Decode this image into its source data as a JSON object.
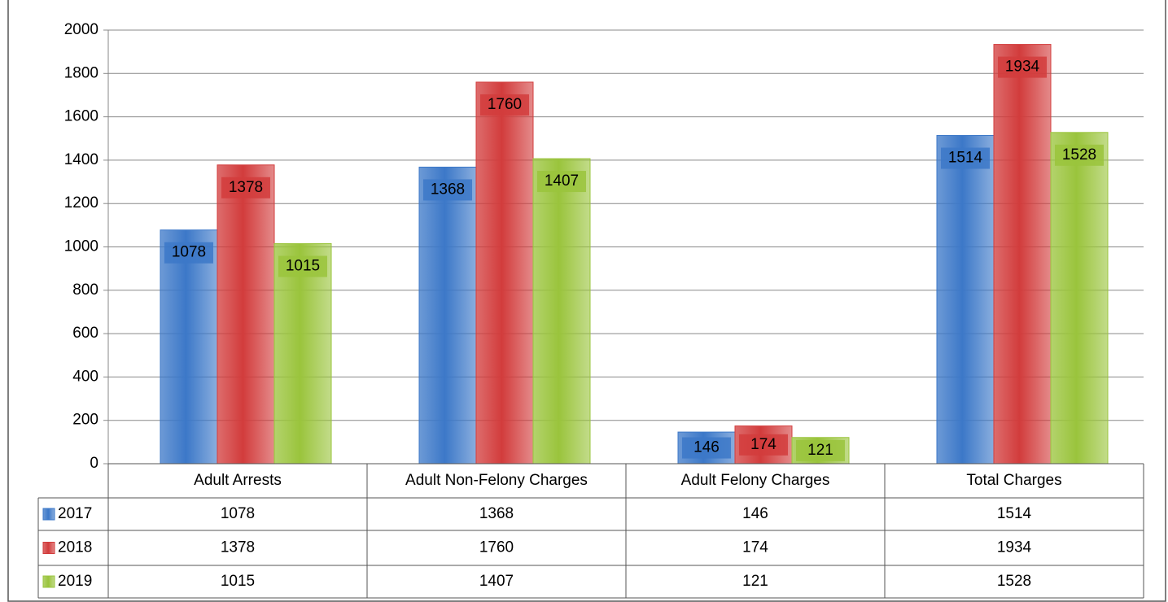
{
  "chart_data": {
    "type": "bar",
    "categories": [
      "Adult Arrests",
      "Adult Non-Felony Charges",
      "Adult Felony Charges",
      "Total Charges"
    ],
    "series": [
      {
        "name": "2017",
        "color": "#3c78c8",
        "values": [
          1078,
          1368,
          146,
          1514
        ]
      },
      {
        "name": "2018",
        "color": "#d23c3c",
        "values": [
          1378,
          1760,
          174,
          1934
        ]
      },
      {
        "name": "2019",
        "color": "#9ac43c",
        "values": [
          1015,
          1407,
          121,
          1528
        ]
      }
    ],
    "ylim": [
      0,
      2000
    ],
    "yticks": [
      0,
      200,
      400,
      600,
      800,
      1000,
      1200,
      1400,
      1600,
      1800,
      2000
    ],
    "grid": true,
    "data_table": true
  }
}
